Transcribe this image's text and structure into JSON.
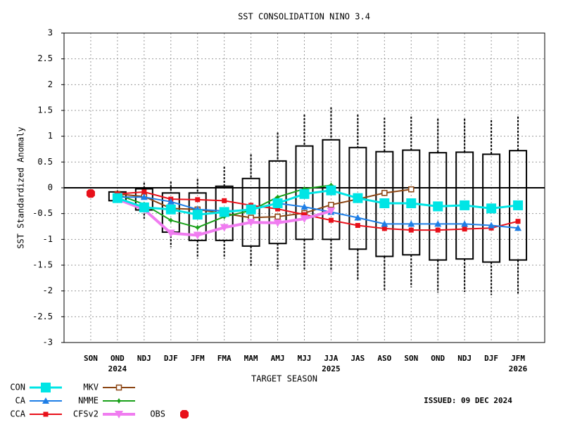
{
  "chart_data": {
    "type": "box-line",
    "title": "SST CONSOLIDATION NINO 3.4",
    "y_label": "SST Standardized Anomaly",
    "x_label": "TARGET SEASON",
    "issued": "ISSUED: 09 DEC 2024",
    "categories": [
      "SON",
      "OND",
      "NDJ",
      "DJF",
      "JFM",
      "FMA",
      "MAM",
      "AMJ",
      "MJJ",
      "JJA",
      "JAS",
      "ASO",
      "SON",
      "OND",
      "NDJ",
      "DJF",
      "JFM"
    ],
    "category_years": [
      null,
      "2024",
      null,
      null,
      null,
      null,
      null,
      null,
      null,
      "2025",
      null,
      null,
      null,
      null,
      null,
      null,
      "2026"
    ],
    "ylim": [
      -3,
      3
    ],
    "yticks": [
      -3,
      -2.5,
      -2,
      -1.5,
      -1,
      -0.5,
      0,
      0.5,
      1,
      1.5,
      2,
      2.5,
      3
    ],
    "grid": true,
    "ensemble": {
      "whisker_high": [
        null,
        -0.05,
        0.1,
        0.12,
        0.17,
        0.41,
        0.65,
        1.07,
        1.42,
        1.56,
        1.42,
        1.36,
        1.38,
        1.34,
        1.34,
        1.31,
        1.38
      ],
      "box_high": [
        null,
        -0.08,
        -0.02,
        -0.1,
        -0.1,
        0.03,
        0.18,
        0.52,
        0.81,
        0.93,
        0.78,
        0.7,
        0.73,
        0.68,
        0.69,
        0.65,
        0.72
      ],
      "box_low": [
        null,
        -0.25,
        -0.43,
        -0.86,
        -1.02,
        -1.02,
        -1.13,
        -1.08,
        -1.0,
        -1.0,
        -1.19,
        -1.33,
        -1.3,
        -1.4,
        -1.38,
        -1.44,
        -1.4
      ],
      "whisker_low": [
        null,
        -0.3,
        -0.6,
        -1.15,
        -1.37,
        -1.37,
        -1.53,
        -1.58,
        -1.58,
        -1.62,
        -1.8,
        -1.98,
        -1.93,
        -2.03,
        -2.02,
        -2.08,
        -2.05
      ]
    },
    "series": [
      {
        "name": "CON",
        "color": "#00e5e5",
        "marker": "square",
        "width": 3,
        "values": [
          null,
          -0.2,
          -0.38,
          -0.42,
          -0.52,
          -0.47,
          -0.42,
          -0.3,
          -0.12,
          -0.05,
          -0.2,
          -0.3,
          -0.3,
          -0.36,
          -0.34,
          -0.4,
          -0.34
        ]
      },
      {
        "name": "CA",
        "color": "#1e7ee6",
        "marker": "triangle",
        "width": 2,
        "values": [
          null,
          -0.18,
          -0.18,
          -0.27,
          -0.42,
          -0.45,
          -0.43,
          -0.3,
          -0.37,
          -0.47,
          -0.58,
          -0.7,
          -0.7,
          -0.7,
          -0.7,
          -0.73,
          -0.78
        ]
      },
      {
        "name": "CCA",
        "color": "#e8101a",
        "marker": "small-square",
        "width": 2,
        "values": [
          null,
          -0.12,
          -0.08,
          -0.22,
          -0.23,
          -0.25,
          -0.34,
          -0.41,
          -0.52,
          -0.63,
          -0.73,
          -0.79,
          -0.82,
          -0.82,
          -0.8,
          -0.78,
          -0.65
        ]
      },
      {
        "name": "MKV",
        "color": "#8b4513",
        "marker": "open-square",
        "width": 2,
        "values": [
          null,
          -0.12,
          -0.17,
          -0.4,
          -0.42,
          -0.5,
          -0.58,
          -0.56,
          -0.49,
          -0.33,
          -0.22,
          -0.1,
          -0.03,
          null,
          null,
          null,
          null
        ]
      },
      {
        "name": "NMME",
        "color": "#18a018",
        "marker": "star",
        "width": 2,
        "values": [
          null,
          -0.13,
          -0.32,
          -0.63,
          -0.77,
          -0.56,
          -0.44,
          -0.18,
          -0.02,
          0.05,
          null,
          null,
          null,
          null,
          null,
          null,
          null
        ]
      },
      {
        "name": "CFSv2",
        "color": "#f07cf0",
        "marker": "triangle-down",
        "width": 4,
        "values": [
          null,
          -0.22,
          -0.42,
          -0.88,
          -0.92,
          -0.77,
          -0.67,
          -0.68,
          -0.6,
          -0.45,
          null,
          null,
          null,
          null,
          null,
          null,
          null
        ]
      },
      {
        "name": "OBS",
        "color": "#e8101a",
        "marker": "octagon",
        "width": 0,
        "values": [
          -0.11,
          null,
          null,
          null,
          null,
          null,
          null,
          null,
          null,
          null,
          null,
          null,
          null,
          null,
          null,
          null,
          null
        ]
      }
    ]
  }
}
